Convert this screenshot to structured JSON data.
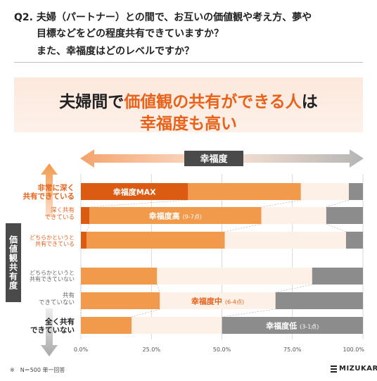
{
  "question": {
    "prefix": "Q2.",
    "line1": "夫婦（パートナー）との間で、お互いの価値観や考え方、夢や",
    "line2": "目標などをどの程度共有できていますか？",
    "line3": "また、幸福度はどのレベルですか？"
  },
  "banner": {
    "part1": "夫婦間で",
    "highlight": "価値観の共有ができる人",
    "part2": "は",
    "line2": "幸福度も高い"
  },
  "axis_title": "幸福度",
  "y_axis_label": "価値観共有度",
  "row_labels": [
    {
      "l1": "非常に深く",
      "l2": "共有できている"
    },
    {
      "l1": "深く共有",
      "l2": "できている"
    },
    {
      "l1": "どちらかというと",
      "l2": "共有できている"
    },
    {
      "l1": "どちらかというと",
      "l2": "共有できていない"
    },
    {
      "l1": "共有",
      "l2": "できていない"
    },
    {
      "l1": "全く共有",
      "l2": "できていない"
    }
  ],
  "footnote": "※　N＝500 単一回答",
  "logo_text": "MIZUKARA",
  "colors": {
    "max": "#dc5b12",
    "high": "#f19a4b",
    "mid": "#fdf0e7",
    "low": "#8c8c8c",
    "accent": "#e8621a"
  },
  "chart_data": {
    "type": "bar",
    "orientation": "horizontal",
    "stacked": true,
    "categories": [
      "非常に深く共有できている",
      "深く共有できている",
      "どちらかというと共有できている",
      "どちらかというと共有できていない",
      "共有できていない",
      "全く共有できていない"
    ],
    "series": [
      {
        "name": "幸福度MAX",
        "values": [
          38,
          3,
          2,
          0,
          0,
          0
        ]
      },
      {
        "name": "幸福度高",
        "sub": "(9-7点)",
        "values": [
          40,
          61,
          49,
          27,
          28,
          18
        ]
      },
      {
        "name": "幸福度中",
        "sub": "(6-4点)",
        "values": [
          17,
          23,
          43,
          55,
          41,
          32
        ]
      },
      {
        "name": "幸福度低",
        "sub": "(3-1点)",
        "values": [
          5,
          13,
          6,
          18,
          31,
          50
        ]
      }
    ],
    "xlim": [
      0,
      100
    ],
    "x_ticks": [
      "0.0%",
      "25.0%",
      "50.0%",
      "75.0%",
      "100.0%"
    ],
    "grid": true
  }
}
